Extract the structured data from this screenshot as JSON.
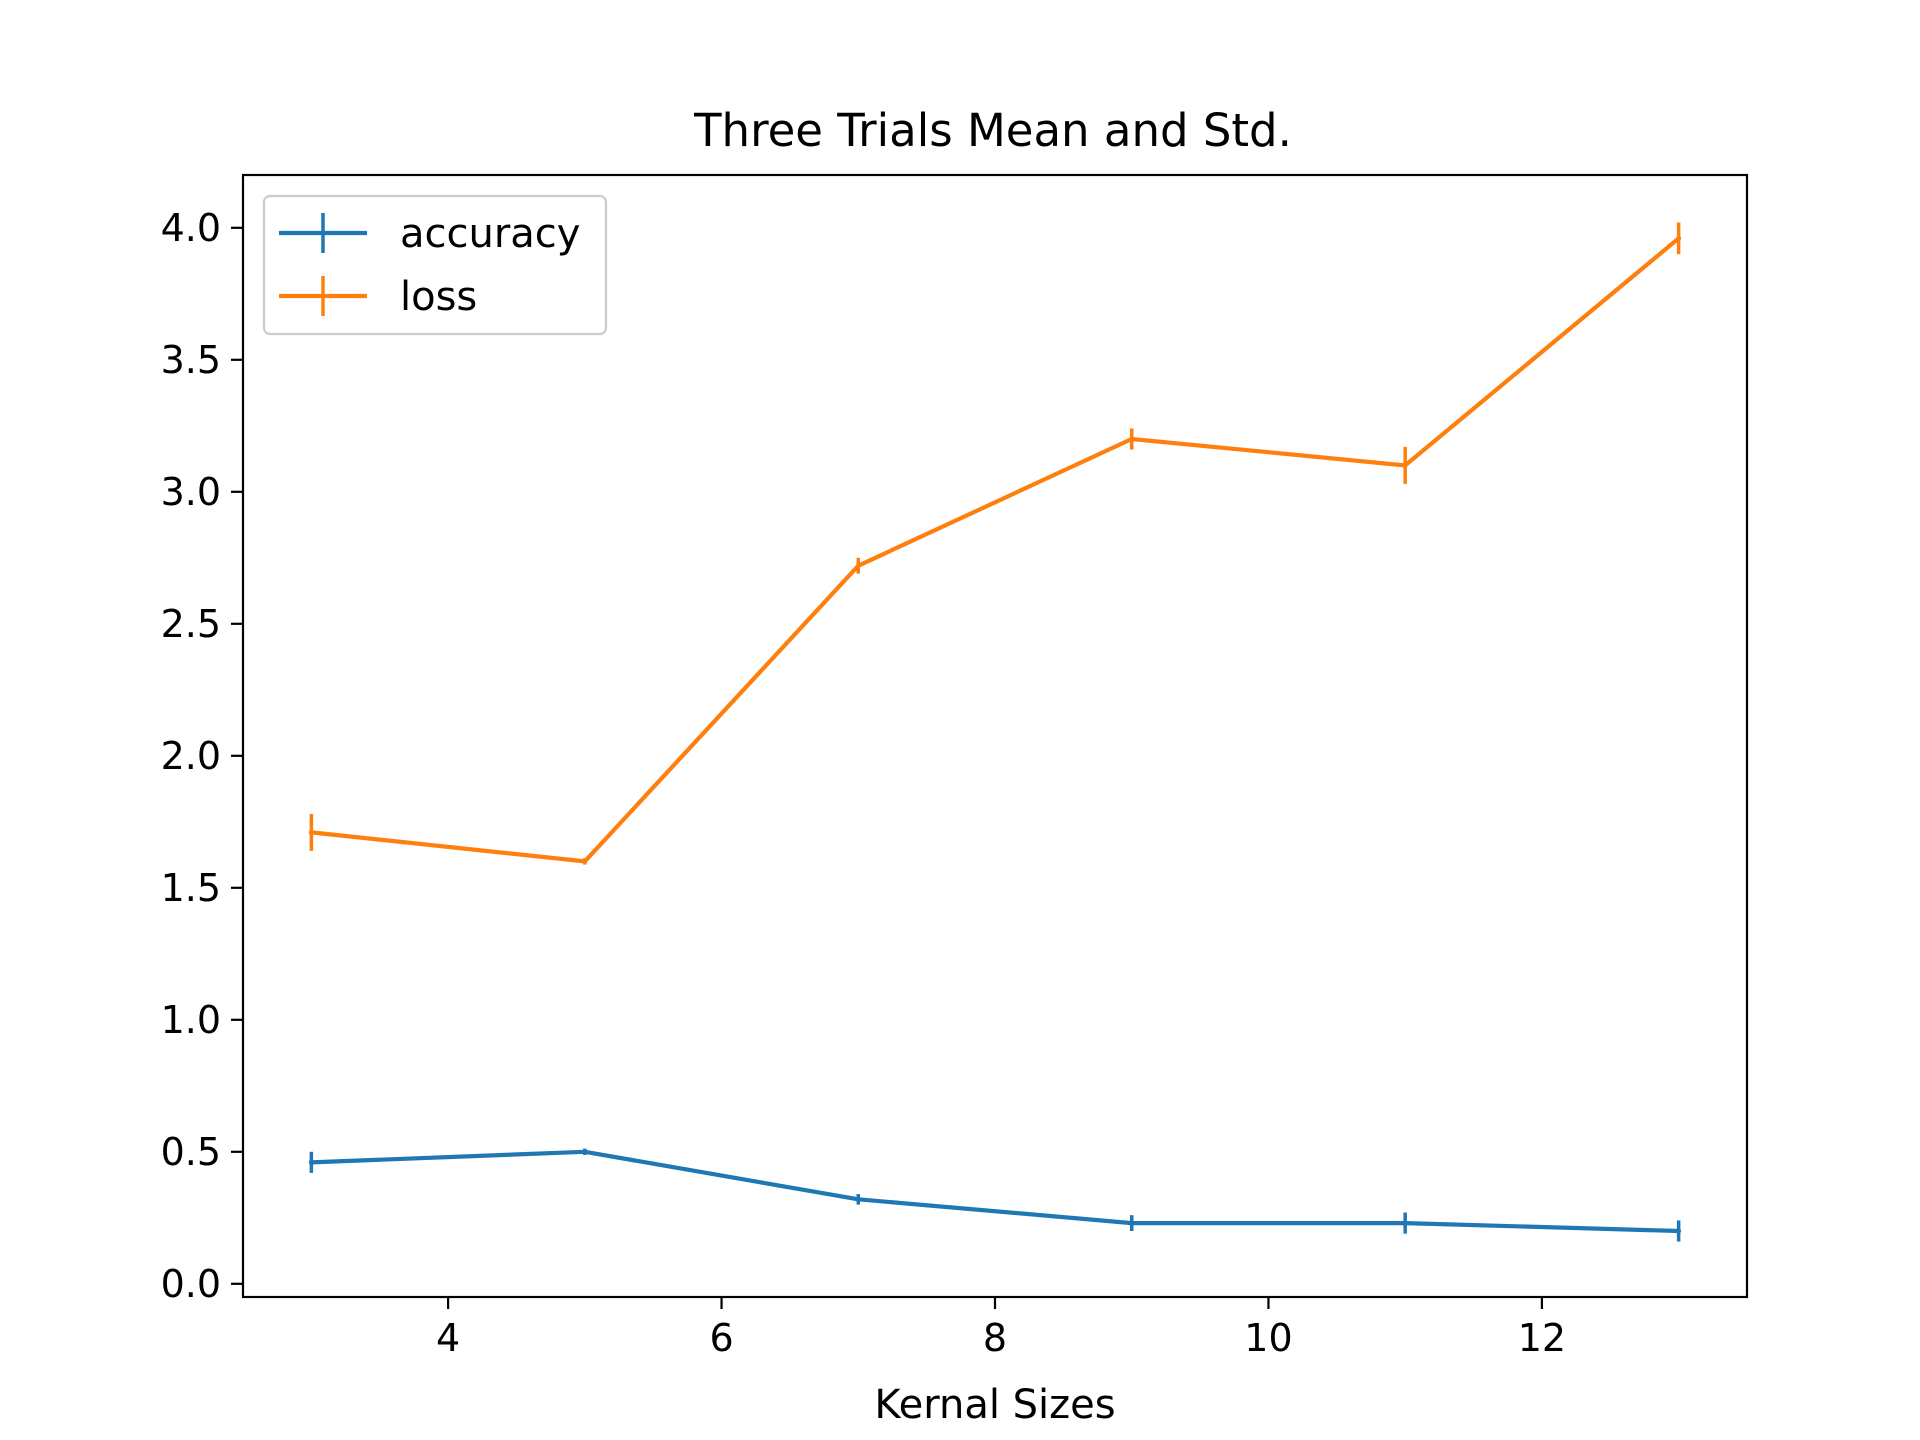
{
  "chart_data": {
    "type": "line",
    "title": "Three Trials Mean and Std.",
    "xlabel": "Kernal Sizes",
    "ylabel": "",
    "x": [
      3,
      5,
      7,
      9,
      11,
      13
    ],
    "xlim": [
      2.5,
      13.5
    ],
    "ylim": [
      -0.05,
      4.2
    ],
    "xticks": [
      4,
      6,
      8,
      10,
      12
    ],
    "xtick_labels": [
      "4",
      "6",
      "8",
      "10",
      "12"
    ],
    "yticks": [
      0.0,
      0.5,
      1.0,
      1.5,
      2.0,
      2.5,
      3.0,
      3.5,
      4.0
    ],
    "ytick_labels": [
      "0.0",
      "0.5",
      "1.0",
      "1.5",
      "2.0",
      "2.5",
      "3.0",
      "3.5",
      "4.0"
    ],
    "grid": false,
    "legend_position": "top-left",
    "series": [
      {
        "name": "accuracy",
        "color": "#1f77b4",
        "values": [
          0.46,
          0.5,
          0.32,
          0.23,
          0.23,
          0.2
        ],
        "errors": [
          0.04,
          0.01,
          0.02,
          0.03,
          0.04,
          0.04
        ]
      },
      {
        "name": "loss",
        "color": "#ff7f0e",
        "values": [
          1.71,
          1.6,
          2.72,
          3.2,
          3.1,
          3.96
        ],
        "errors": [
          0.07,
          0.01,
          0.03,
          0.04,
          0.07,
          0.06
        ]
      }
    ]
  }
}
